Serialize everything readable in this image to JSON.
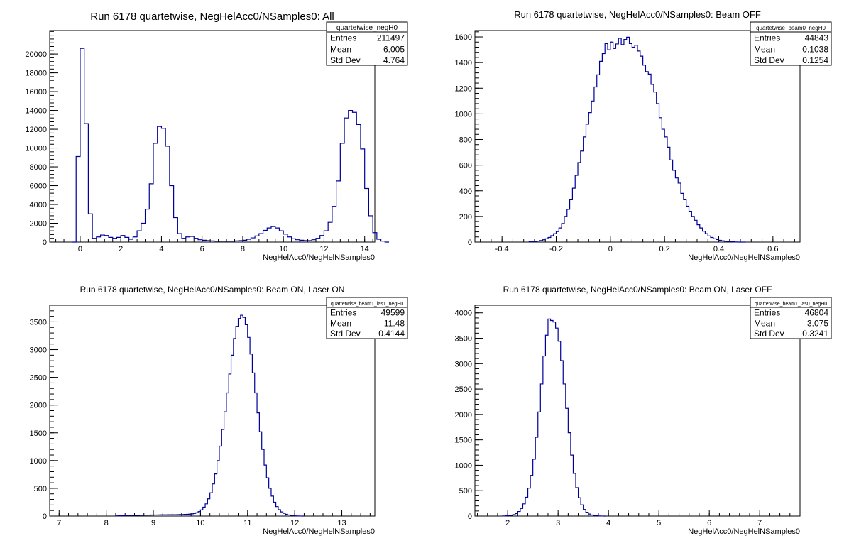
{
  "chart_data": [
    {
      "type": "histogram",
      "title": "Run 6178 quartetwise, NegHelAcc0/NSamples0: All",
      "xlabel": "NegHelAcc0/NegHelNSamples0",
      "ylabel": "",
      "xlim": [
        -1.5,
        14.5
      ],
      "ylim": [
        0,
        22500
      ],
      "xticks": [
        0,
        2,
        4,
        6,
        8,
        10,
        12,
        14
      ],
      "yticks": [
        0,
        2000,
        4000,
        6000,
        8000,
        10000,
        12000,
        14000,
        16000,
        18000,
        20000
      ],
      "grid": false,
      "bins": {
        "x_start": -0.4,
        "bin_width": 0.2,
        "counts": [
          0,
          9100,
          20600,
          12600,
          3000,
          400,
          550,
          750,
          700,
          500,
          400,
          500,
          700,
          500,
          300,
          550,
          1200,
          2000,
          3500,
          6200,
          10500,
          12300,
          12100,
          10200,
          6000,
          2600,
          900,
          400,
          550,
          600,
          400,
          250,
          200,
          150,
          120,
          100,
          100,
          100,
          100,
          100,
          120,
          150,
          200,
          300,
          450,
          650,
          900,
          1250,
          1500,
          1650,
          1500,
          1200,
          850,
          550,
          350,
          250,
          200,
          150,
          150,
          250,
          400,
          700,
          1200,
          2100,
          3800,
          6500,
          10500,
          13200,
          14000,
          13800,
          12500,
          9900,
          5700,
          2800,
          1000,
          300,
          100,
          0
        ]
      },
      "stats": {
        "name": "quartetwise_negH0",
        "entries_label": "Entries",
        "entries": "211497",
        "mean_label": "Mean",
        "mean": "6.005",
        "std_label": "Std Dev",
        "std": "4.764"
      }
    },
    {
      "type": "histogram",
      "title": "Run 6178 quartetwise, NegHelAcc0/NSamples0: Beam OFF",
      "xlabel": "NegHelAcc0/NegHelNSamples0",
      "ylabel": "",
      "xlim": [
        -0.5,
        0.7
      ],
      "ylim": [
        0,
        1650
      ],
      "xticks": [
        -0.4,
        -0.2,
        0,
        0.2,
        0.4,
        0.6
      ],
      "yticks": [
        0,
        200,
        400,
        600,
        800,
        1000,
        1200,
        1400,
        1600
      ],
      "grid": false,
      "bins": {
        "x_start": -0.3,
        "bin_width": 0.01,
        "counts": [
          2,
          3,
          5,
          8,
          12,
          18,
          26,
          36,
          50,
          65,
          82,
          110,
          145,
          200,
          255,
          330,
          420,
          520,
          620,
          710,
          820,
          920,
          1010,
          1100,
          1210,
          1305,
          1410,
          1470,
          1548,
          1500,
          1560,
          1510,
          1545,
          1590,
          1540,
          1580,
          1598,
          1548,
          1520,
          1535,
          1490,
          1450,
          1380,
          1330,
          1310,
          1230,
          1170,
          1080,
          970,
          880,
          820,
          740,
          640,
          560,
          500,
          460,
          380,
          330,
          280,
          240,
          200,
          170,
          135,
          110,
          85,
          65,
          48,
          36,
          26,
          20,
          14,
          10,
          7,
          5,
          3,
          2,
          1,
          0,
          0,
          0
        ]
      },
      "stats": {
        "name": "quartetwise_beam0_negH0",
        "entries_label": "Entries",
        "entries": "44843",
        "mean_label": "Mean",
        "mean": "0.1038",
        "std_label": "Std Dev",
        "std": "0.1254"
      }
    },
    {
      "type": "histogram",
      "title": "Run 6178 quartetwise, NegHelAcc0/NSamples0: Beam ON, Laser ON",
      "xlabel": "NegHelAcc0/NegHelNSamples0",
      "ylabel": "",
      "xlim": [
        6.8,
        13.7
      ],
      "ylim": [
        0,
        3800
      ],
      "xticks": [
        7,
        8,
        9,
        10,
        11,
        12,
        13
      ],
      "yticks": [
        0,
        500,
        1000,
        1500,
        2000,
        2500,
        3000,
        3500
      ],
      "grid": false,
      "bins": {
        "x_start": 8.2,
        "bin_width": 0.05,
        "counts": [
          3,
          5,
          6,
          8,
          9,
          10,
          11,
          12,
          13,
          14,
          15,
          16,
          17,
          18,
          18,
          19,
          20,
          20,
          21,
          22,
          22,
          23,
          24,
          24,
          25,
          25,
          26,
          27,
          28,
          30,
          32,
          35,
          40,
          48,
          60,
          80,
          110,
          160,
          220,
          310,
          420,
          580,
          760,
          1000,
          1260,
          1560,
          1880,
          2220,
          2560,
          2900,
          3200,
          3420,
          3560,
          3620,
          3580,
          3450,
          3220,
          2920,
          2580,
          2220,
          1860,
          1520,
          1200,
          920,
          690,
          500,
          360,
          250,
          170,
          115,
          75,
          50,
          32,
          20,
          12,
          7,
          4,
          2,
          1,
          0
        ]
      },
      "stats": {
        "name": "quartetwise_beam1_las1_negH0",
        "entries_label": "Entries",
        "entries": "49599",
        "mean_label": "Mean",
        "mean": "11.48",
        "std_label": "Std Dev",
        "std": "0.4144"
      }
    },
    {
      "type": "histogram",
      "title": "Run 6178 quartetwise, NegHelAcc0/NSamples0: Beam ON, Laser OFF",
      "xlabel": "NegHelAcc0/NegHelNSamples0",
      "ylabel": "",
      "xlim": [
        1.35,
        7.8
      ],
      "ylim": [
        0,
        4150
      ],
      "xticks": [
        2,
        3,
        4,
        5,
        6,
        7
      ],
      "yticks": [
        0,
        500,
        1000,
        1500,
        2000,
        2500,
        3000,
        3500,
        4000
      ],
      "grid": false,
      "bins": {
        "x_start": 1.9,
        "bin_width": 0.05,
        "counts": [
          2,
          5,
          8,
          15,
          28,
          50,
          90,
          150,
          240,
          370,
          550,
          800,
          1120,
          1550,
          2050,
          2600,
          3150,
          3560,
          3880,
          3850,
          3820,
          3700,
          3440,
          3060,
          2600,
          2120,
          1640,
          1200,
          840,
          560,
          360,
          220,
          130,
          75,
          40,
          22,
          12,
          6,
          3,
          1,
          0
        ]
      },
      "stats": {
        "name": "quartetwise_beam1_las0_negH0",
        "entries_label": "Entries",
        "entries": "46804",
        "mean_label": "Mean",
        "mean": "3.075",
        "std_label": "Std Dev",
        "std": "0.3241"
      }
    }
  ],
  "colors": {
    "histogram_line": "#000099",
    "frame": "#000000",
    "background": "#ffffff"
  }
}
